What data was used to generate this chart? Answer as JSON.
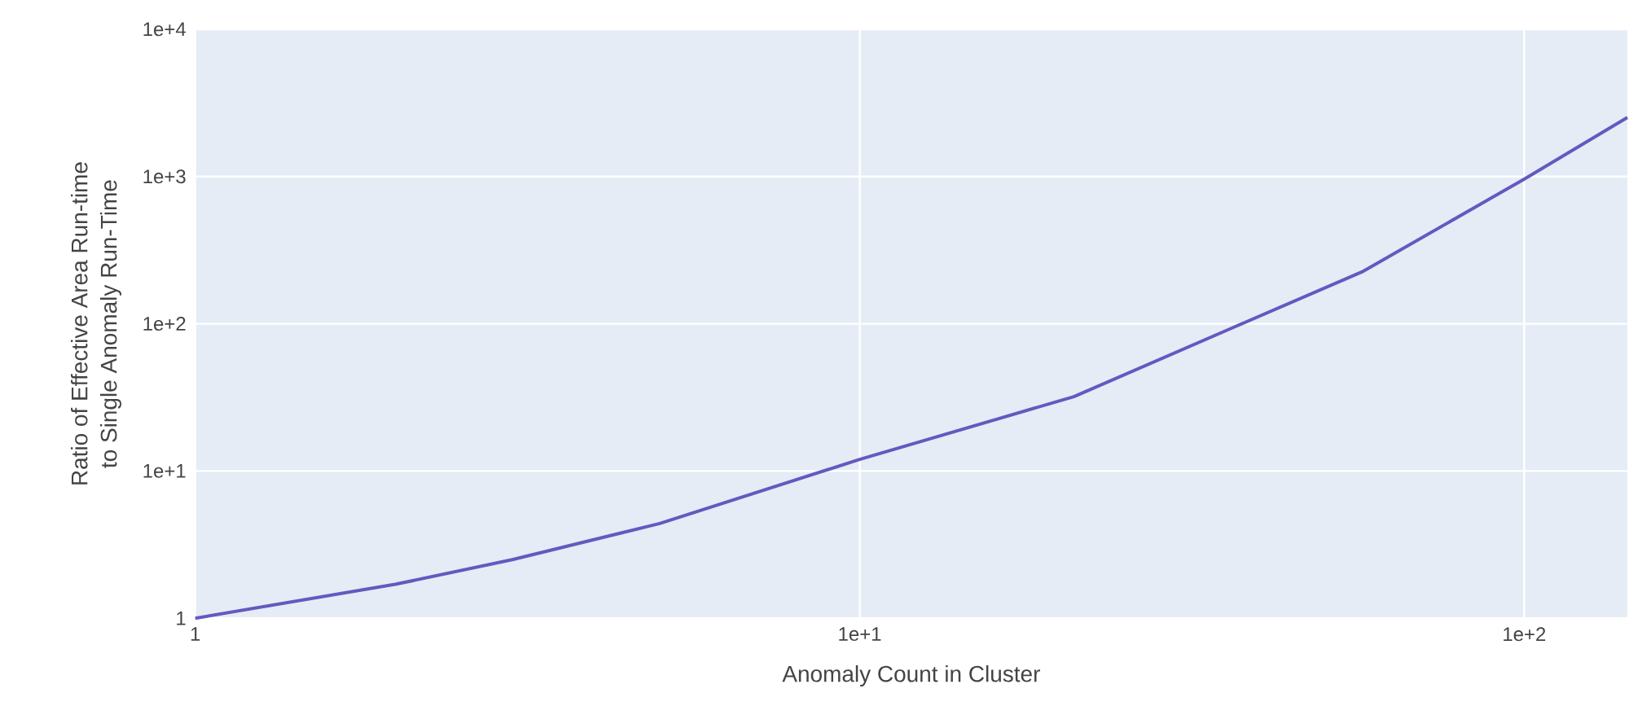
{
  "chart_data": {
    "type": "line",
    "xlabel": "Anomaly Count in Cluster",
    "ylabel": "Ratio of Effective Area Run-time\nto Single Anomaly Run-Time",
    "x": [
      1,
      2,
      3,
      5,
      10,
      21,
      37,
      57,
      100,
      143
    ],
    "series": [
      {
        "color": "#6459c0",
        "values": [
          1,
          1.7,
          2.5,
          4.4,
          12,
          32,
          97,
          225,
          960,
          2520
        ]
      }
    ],
    "log": "xy",
    "xlim": [
      1,
      143
    ],
    "ylim": [
      1,
      10000
    ],
    "xticks": [
      {
        "value": 1,
        "label": "1"
      },
      {
        "value": 10,
        "label": "1e+1"
      },
      {
        "value": 100,
        "label": "1e+2"
      }
    ],
    "yticks": [
      {
        "value": 1,
        "label": "1"
      },
      {
        "value": 10,
        "label": "1e+1"
      },
      {
        "value": 100,
        "label": "1e+2"
      },
      {
        "value": 1000,
        "label": "1e+3"
      },
      {
        "value": 10000,
        "label": "1e+4"
      }
    ],
    "grid": true,
    "marker": "none",
    "line_style": "solid"
  }
}
